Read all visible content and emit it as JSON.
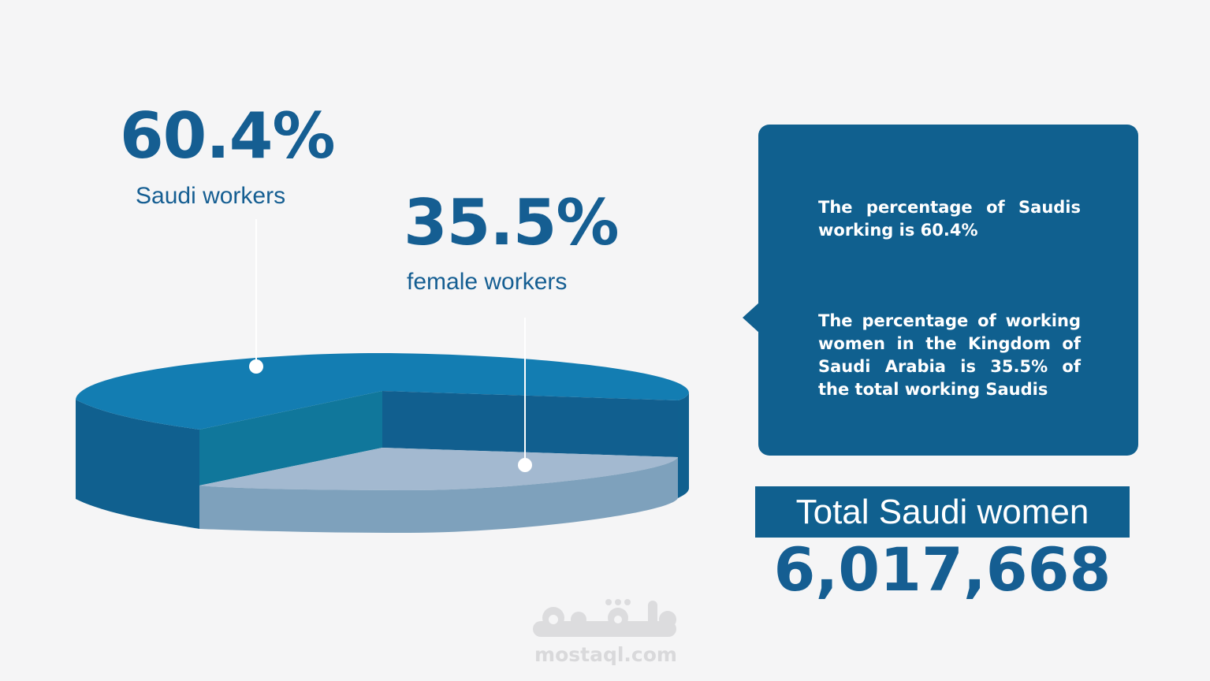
{
  "chart_data": {
    "type": "pie",
    "slices": [
      {
        "label": "Saudi workers",
        "value": 60.4,
        "display": "60.4%",
        "color": "#137db2"
      },
      {
        "label": "female workers",
        "value": 35.5,
        "display": "35.5%",
        "color": "#a3b9d0"
      }
    ]
  },
  "info": {
    "text1": "The percentage of Saudis working is 60.4%",
    "text2": "The percentage of working women in the Kingdom of Saudi Arabia is 35.5% of the total working Saudis"
  },
  "total": {
    "label": "Total Saudi women",
    "value": "6,017,668"
  },
  "watermark": {
    "text": "mostaql.com"
  },
  "colors": {
    "primary": "#155e92",
    "box": "#10608f",
    "pie_top": "#137db2",
    "pie_side": "#10608f",
    "pie_inner": "#10779b",
    "slice_top": "#a3b9d0",
    "slice_side": "#7ea1bc"
  }
}
